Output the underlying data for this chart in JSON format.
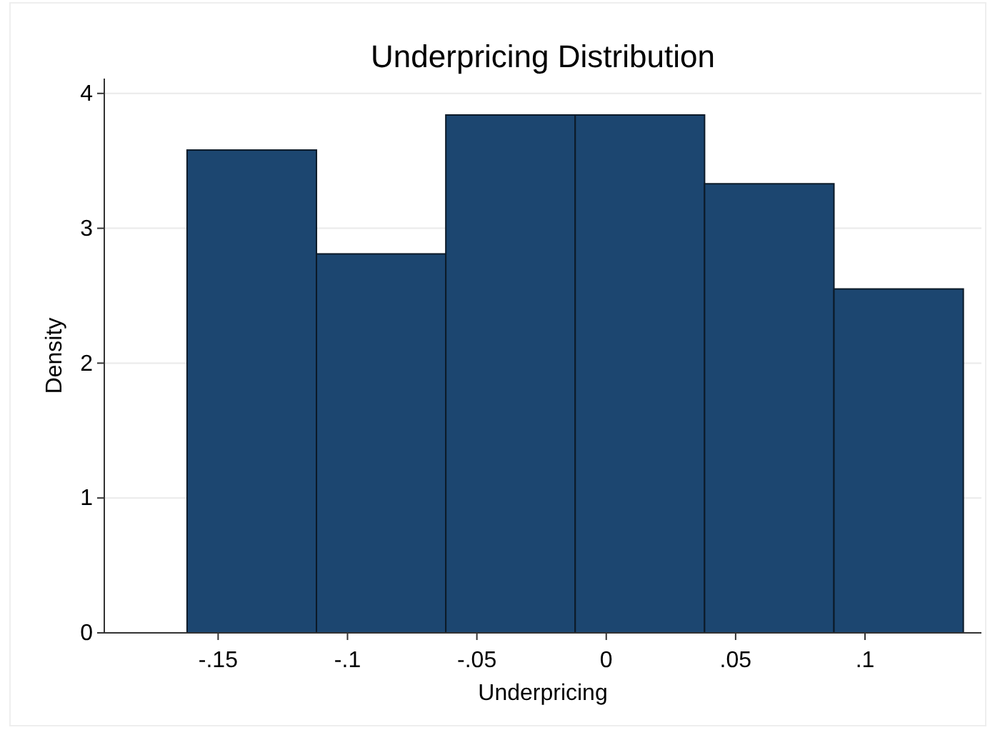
{
  "chart_data": {
    "type": "histogram",
    "title": "Underpricing Distribution",
    "xlabel": "Underpricing",
    "ylabel": "Density",
    "bins": [
      -0.162,
      -0.112,
      -0.062,
      -0.012,
      0.038,
      0.088,
      0.138
    ],
    "values": [
      3.58,
      2.81,
      3.84,
      3.84,
      3.33,
      2.55
    ],
    "color": "#1c4670",
    "xlim": [
      -0.194,
      0.145
    ],
    "xticks": [
      {
        "value": -0.15,
        "label": "-.15"
      },
      {
        "value": -0.1,
        "label": "-.1"
      },
      {
        "value": -0.05,
        "label": "-.05"
      },
      0,
      {
        "value": 0.05,
        "label": ".05"
      },
      {
        "value": 0.1,
        "label": ".1"
      }
    ],
    "ylim": [
      0,
      4.11
    ],
    "yticks": [
      0,
      1,
      2,
      3,
      4
    ],
    "grid": "y"
  }
}
